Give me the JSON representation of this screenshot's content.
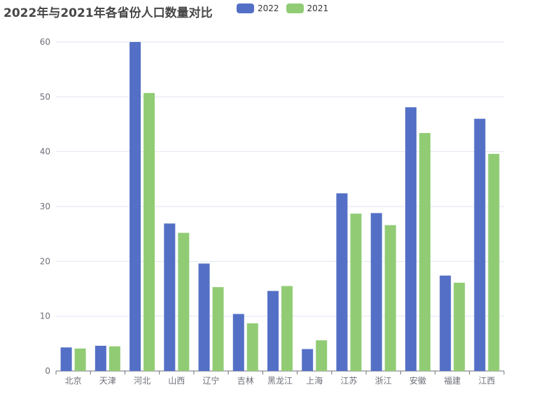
{
  "chart_data": {
    "type": "bar",
    "title": "2022年与2021年各省份人口数量对比",
    "categories": [
      "北京",
      "天津",
      "河北",
      "山西",
      "辽宁",
      "吉林",
      "黑龙江",
      "上海",
      "江苏",
      "浙江",
      "安徽",
      "福建",
      "江西"
    ],
    "series": [
      {
        "name": "2022",
        "color": "#5470c6",
        "values": [
          4.3,
          4.6,
          60.0,
          26.9,
          19.6,
          10.4,
          14.6,
          4.0,
          32.4,
          28.8,
          48.1,
          17.4,
          46.0
        ]
      },
      {
        "name": "2021",
        "color": "#91cc75",
        "values": [
          4.1,
          4.5,
          50.7,
          25.2,
          15.3,
          8.7,
          15.5,
          5.6,
          28.7,
          26.6,
          43.4,
          16.1,
          39.6
        ]
      }
    ],
    "ylim": [
      0,
      60
    ],
    "yticks": [
      0,
      10,
      20,
      30,
      40,
      50,
      60
    ],
    "grid": true,
    "legend_position": "top"
  }
}
